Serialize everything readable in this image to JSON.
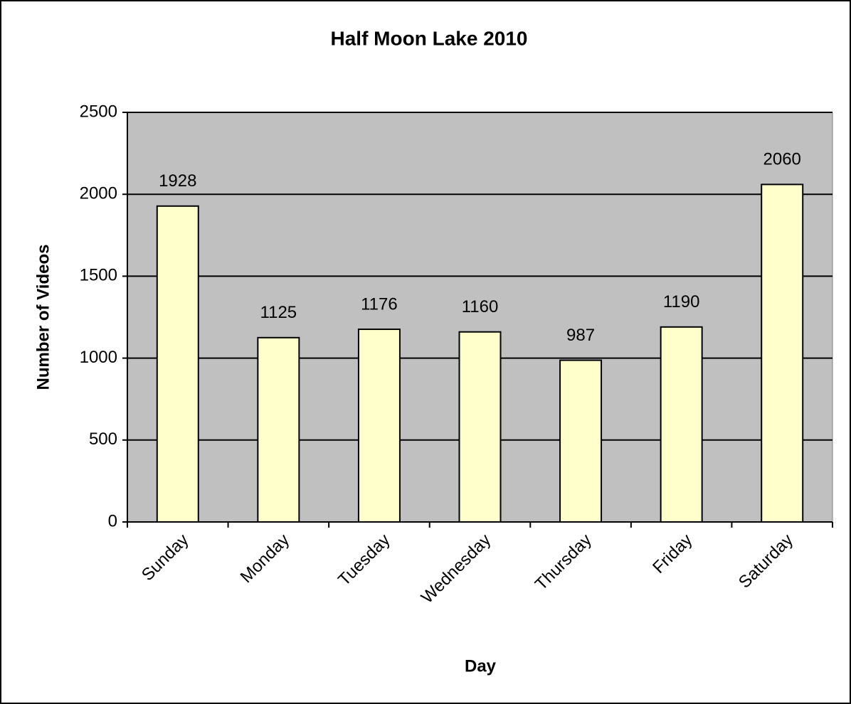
{
  "chart_data": {
    "type": "bar",
    "title": "Half Moon Lake 2010",
    "x_label": "Day",
    "y_label": "Number of Videos",
    "categories": [
      "Sunday",
      "Monday",
      "Tuesday",
      "Wednesday",
      "Thursday",
      "Friday",
      "Saturday"
    ],
    "values": [
      1928,
      1125,
      1176,
      1160,
      987,
      1190,
      2060
    ],
    "color": "#ffffcc",
    "plot_background": "#c0c0c0",
    "ylim": [
      0,
      2500
    ],
    "yticks": [
      0,
      500,
      1000,
      1500,
      2000,
      2500
    ],
    "grid": true
  }
}
